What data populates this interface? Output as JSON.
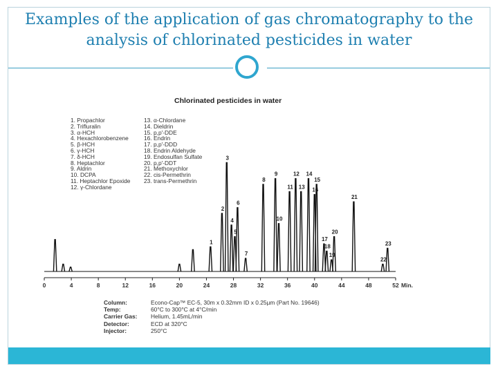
{
  "slide": {
    "title_line1": "Examples of the application of gas chromatography to the",
    "title_line2": "analysis of chlorinated pesticides in water"
  },
  "chart_data": {
    "type": "line",
    "title": "Chlorinated pesticides in water",
    "xlabel": "Min.",
    "x_ticks": [
      "0",
      "4",
      "8",
      "12",
      "16",
      "20",
      "24",
      "28",
      "32",
      "36",
      "40",
      "44",
      "48",
      "52"
    ],
    "xlim": [
      0,
      52
    ],
    "peaks": [
      {
        "label": "",
        "time": 1.6,
        "height": 0.22
      },
      {
        "label": "",
        "time": 2.8,
        "height": 0.05
      },
      {
        "label": "",
        "time": 3.9,
        "height": 0.03
      },
      {
        "label": "",
        "time": 20.0,
        "height": 0.05
      },
      {
        "label": "",
        "time": 22.0,
        "height": 0.15
      },
      {
        "label": "1",
        "time": 24.6,
        "height": 0.17
      },
      {
        "label": "2",
        "time": 26.3,
        "height": 0.4
      },
      {
        "label": "3",
        "time": 27.0,
        "height": 0.75
      },
      {
        "label": "4",
        "time": 27.7,
        "height": 0.32
      },
      {
        "label": "5",
        "time": 28.2,
        "height": 0.24
      },
      {
        "label": "6",
        "time": 28.6,
        "height": 0.44
      },
      {
        "label": "7",
        "time": 29.8,
        "height": 0.09
      },
      {
        "label": "8",
        "time": 32.4,
        "height": 0.6
      },
      {
        "label": "9",
        "time": 34.2,
        "height": 0.64
      },
      {
        "label": "10",
        "time": 34.7,
        "height": 0.33
      },
      {
        "label": "11",
        "time": 36.3,
        "height": 0.55
      },
      {
        "label": "12",
        "time": 37.2,
        "height": 0.64
      },
      {
        "label": "13",
        "time": 38.0,
        "height": 0.55
      },
      {
        "label": "14",
        "time": 39.1,
        "height": 0.64
      },
      {
        "label": "15",
        "time": 40.3,
        "height": 0.6
      },
      {
        "label": "16",
        "time": 40.0,
        "height": 0.53
      },
      {
        "label": "17",
        "time": 41.4,
        "height": 0.19
      },
      {
        "label": "18",
        "time": 41.8,
        "height": 0.14
      },
      {
        "label": "19",
        "time": 42.5,
        "height": 0.08
      },
      {
        "label": "20",
        "time": 42.9,
        "height": 0.24
      },
      {
        "label": "21",
        "time": 45.8,
        "height": 0.48
      },
      {
        "label": "22",
        "time": 50.1,
        "height": 0.05
      },
      {
        "label": "23",
        "time": 50.8,
        "height": 0.16
      }
    ],
    "legend_col1": [
      "1. Propachlor",
      "2. Trifluralin",
      "3. α-HCH",
      "4. Hexachlorobenzene",
      "5. β-HCH",
      "6. γ-HCH",
      "7. δ-HCH",
      "8. Heptachlor",
      "9. Aldrin",
      "10. DCPA",
      "11. Heptachlor Epoxide",
      "12. γ-Chlordane"
    ],
    "legend_col2": [
      "13. α-Chlordane",
      "14. Dieldrin",
      "15. p,p'-DDE",
      "16. Endrin",
      "17. p,p'-DDD",
      "18. Endrin Aldehyde",
      "19. Endosulfan Sulfate",
      "20. p,p'-DDT",
      "21. Methoxychlor",
      "22. cis-Permethrin",
      "23. trans-Permethrin"
    ]
  },
  "conditions": [
    {
      "label": "Column:",
      "value": "Econo-Cap™ EC-5, 30m x 0.32mm ID x 0.25µm (Part No. 19646)"
    },
    {
      "label": "Temp:",
      "value": "60°C to 300°C at 4°C/min"
    },
    {
      "label": "Carrier Gas:",
      "value": "Helium, 1.45mL/min"
    },
    {
      "label": "Detector:",
      "value": "ECD at 320°C"
    },
    {
      "label": "Injector:",
      "value": "250°C"
    }
  ],
  "colors": {
    "title": "#1e7fb0",
    "accent": "#2bb6d6",
    "trace": "#111111"
  }
}
